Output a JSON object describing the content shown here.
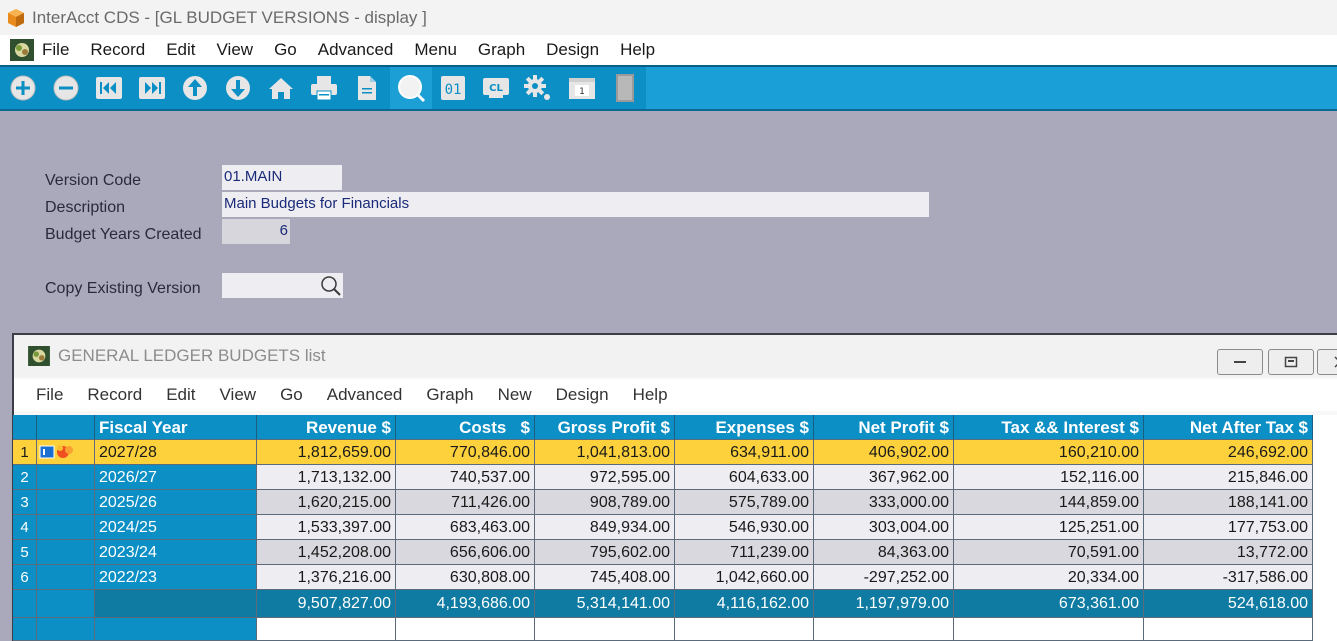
{
  "window": {
    "title": "InterAcct CDS - [GL BUDGET VERSIONS - display ]"
  },
  "menubar": {
    "items": [
      "File",
      "Record",
      "Edit",
      "View",
      "Go",
      "Advanced",
      "Menu",
      "Graph",
      "Design",
      "Help"
    ]
  },
  "toolbar": {
    "buttons": [
      "add-icon",
      "remove-icon",
      "first-record-icon",
      "last-record-icon",
      "previous-record-icon",
      "next-record-icon",
      "home-icon",
      "print-icon",
      "document-icon",
      "search-icon",
      "calculator-icon",
      "clear-icon",
      "settings-icon",
      "calendar-icon",
      "door-icon"
    ],
    "calendar_day": "1",
    "counter_label": "01",
    "clear_label": "CL"
  },
  "form": {
    "version_code_label": "Version Code",
    "version_code": "01.MAIN",
    "description_label": "Description",
    "description": "Main Budgets for Financials",
    "budget_years_label": "Budget Years Created",
    "budget_years": "6",
    "copy_label": "Copy Existing Version",
    "copy_value": ""
  },
  "subwindow": {
    "title": "GENERAL LEDGER BUDGETS list",
    "menu": [
      "File",
      "Record",
      "Edit",
      "View",
      "Go",
      "Advanced",
      "Graph",
      "New",
      "Design",
      "Help"
    ]
  },
  "table": {
    "headers": [
      "Fiscal Year",
      "Revenue $",
      "Costs   $",
      "Gross Profit $",
      "Expenses $",
      "Net Profit $",
      "Tax && Interest $",
      "Net After Tax $"
    ],
    "rows": [
      {
        "num": "1",
        "fy": "2027/28",
        "values": [
          "1,812,659.00",
          "770,846.00",
          "1,041,813.00",
          "634,911.00",
          "406,902.00",
          "160,210.00",
          "246,692.00"
        ]
      },
      {
        "num": "2",
        "fy": "2026/27",
        "values": [
          "1,713,132.00",
          "740,537.00",
          "972,595.00",
          "604,633.00",
          "367,962.00",
          "152,116.00",
          "215,846.00"
        ]
      },
      {
        "num": "3",
        "fy": "2025/26",
        "values": [
          "1,620,215.00",
          "711,426.00",
          "908,789.00",
          "575,789.00",
          "333,000.00",
          "144,859.00",
          "188,141.00"
        ]
      },
      {
        "num": "4",
        "fy": "2024/25",
        "values": [
          "1,533,397.00",
          "683,463.00",
          "849,934.00",
          "546,930.00",
          "303,004.00",
          "125,251.00",
          "177,753.00"
        ]
      },
      {
        "num": "5",
        "fy": "2023/24",
        "values": [
          "1,452,208.00",
          "656,606.00",
          "795,602.00",
          "711,239.00",
          "84,363.00",
          "70,591.00",
          "13,772.00"
        ]
      },
      {
        "num": "6",
        "fy": "2022/23",
        "values": [
          "1,376,216.00",
          "630,808.00",
          "745,408.00",
          "1,042,660.00",
          "-297,252.00",
          "20,334.00",
          "-317,586.00"
        ]
      }
    ],
    "totals": [
      "9,507,827.00",
      "4,193,686.00",
      "5,314,141.00",
      "4,116,162.00",
      "1,197,979.00",
      "673,361.00",
      "524,618.00"
    ]
  },
  "colors": {
    "accent": "#0c8fc4",
    "selected_row": "#fcd13c",
    "totals_row": "#0f7aa2",
    "background": "#a9a9bb"
  }
}
